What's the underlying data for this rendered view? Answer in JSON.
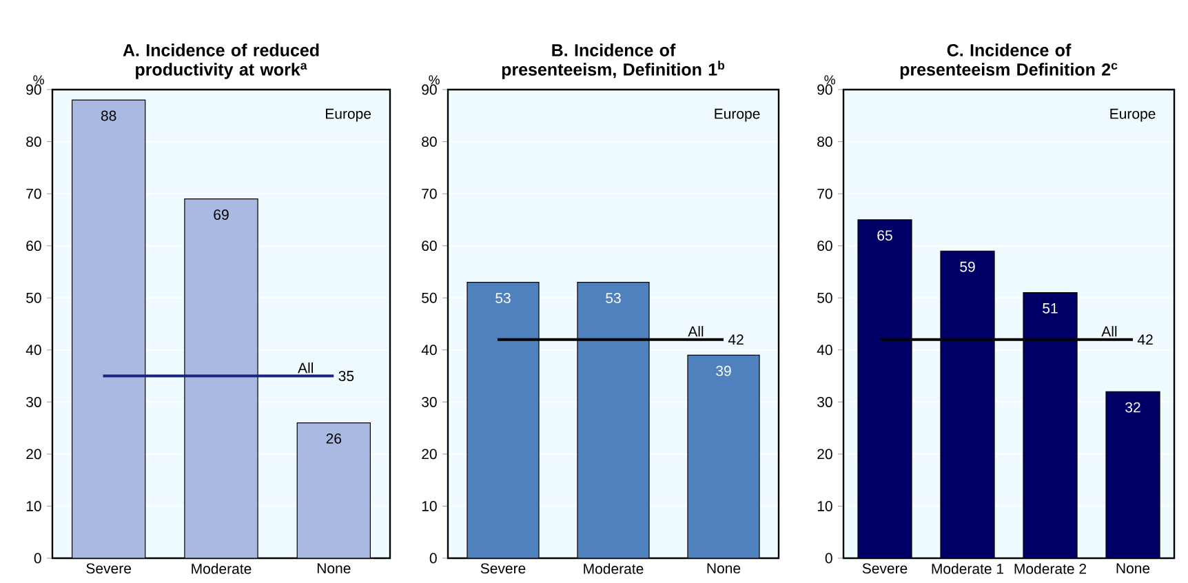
{
  "chart_data": [
    {
      "type": "bar",
      "title": "A. Incidence of reduced productivity at work$^{a}$",
      "ylabel": "%",
      "categories": [
        "Severe",
        "Moderate",
        "None"
      ],
      "values": [
        88,
        69,
        26
      ],
      "color": "#a9b9e1",
      "ylim": [
        0,
        90
      ],
      "yticks": [
        0,
        10,
        20,
        30,
        40,
        50,
        60,
        70,
        80,
        90
      ],
      "grid": "y",
      "data_labels": true,
      "annotations": [
        "Europe",
        "35"
      ],
      "ref_lines": [
        {
          "axis": "y",
          "value": 35,
          "label": "All",
          "color": "#1a237e"
        }
      ]
    },
    {
      "type": "bar",
      "title": "B. Incidence of presenteeism, Definition 1$^{b}$",
      "ylabel": "%",
      "categories": [
        "Severe",
        "Moderate",
        "None"
      ],
      "values": [
        53,
        53,
        39
      ],
      "color": "#4f81bd",
      "ylim": [
        0,
        90
      ],
      "yticks": [
        0,
        10,
        20,
        30,
        40,
        50,
        60,
        70,
        80,
        90
      ],
      "grid": "y",
      "data_labels": true,
      "annotations": [
        "Europe",
        "42"
      ],
      "ref_lines": [
        {
          "axis": "y",
          "value": 42,
          "label": "All",
          "color": "#000000"
        }
      ]
    },
    {
      "type": "bar",
      "title": "C. Incidence of presenteeism Definition 2$^{c}$",
      "ylabel": "%",
      "categories": [
        "Severe",
        "Moderate 1",
        "Moderate 2",
        "None"
      ],
      "values": [
        65,
        59,
        51,
        32
      ],
      "color": "#000066",
      "ylim": [
        0,
        90
      ],
      "yticks": [
        0,
        10,
        20,
        30,
        40,
        50,
        60,
        70,
        80,
        90
      ],
      "grid": "y",
      "data_labels": true,
      "annotations": [
        "Europe",
        "42"
      ],
      "ref_lines": [
        {
          "axis": "y",
          "value": 42,
          "label": "All",
          "color": "#000000"
        }
      ]
    }
  ]
}
